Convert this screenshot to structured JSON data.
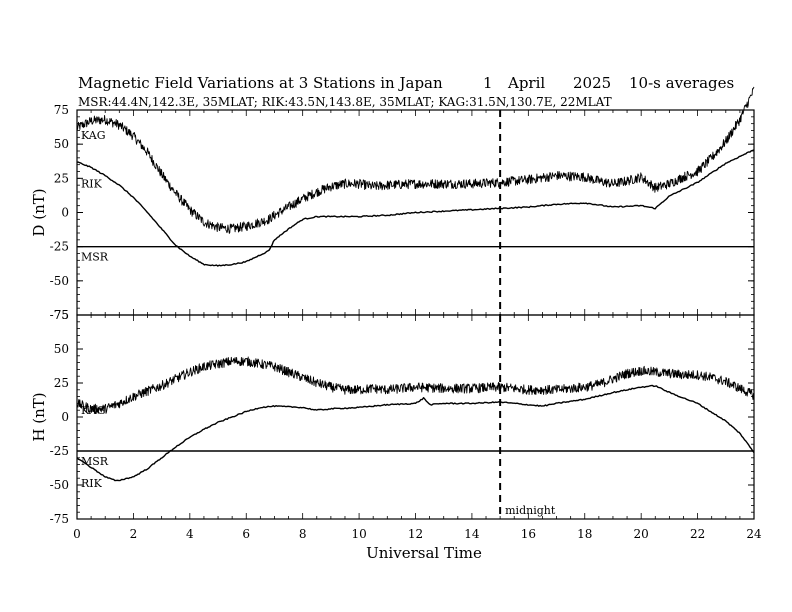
{
  "chart_data": {
    "type": "line",
    "title": "Magnetic Field Variations at 3 Stations in Japan",
    "date": {
      "day": "1",
      "month": "April",
      "year": "2025"
    },
    "averaging": "10-s averages",
    "subtitle": "MSR:44.4N,142.3E, 35MLAT;  RIK:43.5N,143.8E, 35MLAT;  KAG:31.5N,130.7E, 22MLAT",
    "xlabel": "Universal Time",
    "xlim": [
      0,
      24
    ],
    "xticks": [
      "0",
      "2",
      "4",
      "6",
      "8",
      "10",
      "12",
      "14",
      "16",
      "18",
      "20",
      "22",
      "24"
    ],
    "annotations": [
      {
        "text": "midnight",
        "x": 15
      }
    ],
    "marker_line": {
      "x": 15,
      "style": "dashed"
    },
    "panels": [
      {
        "ylabel": "D (nT)",
        "ylim": [
          -75,
          75
        ],
        "yticks": [
          "75",
          "50",
          "25",
          "0",
          "-25",
          "-50",
          "-75"
        ],
        "series": [
          {
            "name": "KAG",
            "noisy": true,
            "points": [
              [
                0,
                62
              ],
              [
                0.5,
                67
              ],
              [
                1,
                68
              ],
              [
                1.5,
                64
              ],
              [
                2,
                56
              ],
              [
                2.5,
                44
              ],
              [
                3,
                28
              ],
              [
                3.5,
                14
              ],
              [
                4,
                2
              ],
              [
                4.5,
                -7
              ],
              [
                5,
                -11
              ],
              [
                5.5,
                -12
              ],
              [
                6,
                -10
              ],
              [
                6.5,
                -7
              ],
              [
                6.8,
                -5
              ],
              [
                7,
                -2
              ],
              [
                7.5,
                4
              ],
              [
                8,
                10
              ],
              [
                8.5,
                15
              ],
              [
                9,
                19
              ],
              [
                9.5,
                21
              ],
              [
                10,
                21
              ],
              [
                10.5,
                19
              ],
              [
                11,
                20
              ],
              [
                12,
                21
              ],
              [
                13,
                21
              ],
              [
                14,
                21
              ],
              [
                15,
                22
              ],
              [
                16,
                24
              ],
              [
                17,
                27
              ],
              [
                18,
                26
              ],
              [
                18.5,
                23
              ],
              [
                19,
                21
              ],
              [
                19.5,
                23
              ],
              [
                20,
                26
              ],
              [
                20.5,
                18
              ],
              [
                21,
                21
              ],
              [
                21.5,
                26
              ],
              [
                22,
                30
              ],
              [
                22.5,
                40
              ],
              [
                23,
                52
              ],
              [
                23.5,
                68
              ],
              [
                24,
                90
              ]
            ]
          },
          {
            "name": "RIK",
            "noisy": false,
            "points": [
              [
                0,
                37
              ],
              [
                0.5,
                33
              ],
              [
                1,
                27
              ],
              [
                1.5,
                20
              ],
              [
                2,
                11
              ],
              [
                2.5,
                0
              ],
              [
                3,
                -12
              ],
              [
                3.5,
                -24
              ],
              [
                4,
                -32
              ],
              [
                4.5,
                -38
              ],
              [
                5,
                -39
              ],
              [
                5.5,
                -38
              ],
              [
                6,
                -36
              ],
              [
                6.5,
                -31
              ],
              [
                6.8,
                -28
              ],
              [
                7,
                -20
              ],
              [
                7.5,
                -12
              ],
              [
                8,
                -5
              ],
              [
                8.5,
                -3
              ],
              [
                9,
                -3
              ],
              [
                10,
                -3
              ],
              [
                11,
                -2
              ],
              [
                12,
                0
              ],
              [
                13,
                1
              ],
              [
                14,
                2
              ],
              [
                15,
                3
              ],
              [
                16,
                4
              ],
              [
                17,
                6
              ],
              [
                18,
                7
              ],
              [
                19,
                4
              ],
              [
                20,
                5
              ],
              [
                20.5,
                3
              ],
              [
                21,
                12
              ],
              [
                22,
                22
              ],
              [
                23,
                36
              ],
              [
                24,
                46
              ]
            ]
          },
          {
            "name": "MSR",
            "noisy": false,
            "points": [
              [
                0,
                -25
              ],
              [
                24,
                -25
              ]
            ]
          }
        ]
      },
      {
        "ylabel": "H (nT)",
        "ylim": [
          -75,
          75
        ],
        "yticks": [
          "75",
          "50",
          "25",
          "0",
          "-25",
          "-50",
          "-75"
        ],
        "series": [
          {
            "name": "KAG",
            "noisy": true,
            "points": [
              [
                0,
                10
              ],
              [
                0.5,
                6
              ],
              [
                1,
                6
              ],
              [
                1.5,
                10
              ],
              [
                2,
                15
              ],
              [
                2.5,
                19
              ],
              [
                3,
                23
              ],
              [
                3.5,
                28
              ],
              [
                4,
                33
              ],
              [
                4.5,
                37
              ],
              [
                5,
                39
              ],
              [
                5.5,
                41
              ],
              [
                6,
                41
              ],
              [
                6.5,
                39
              ],
              [
                7,
                37
              ],
              [
                7.5,
                33
              ],
              [
                8,
                29
              ],
              [
                8.5,
                25
              ],
              [
                9,
                22
              ],
              [
                9.5,
                20
              ],
              [
                10,
                20
              ],
              [
                10.5,
                21
              ],
              [
                11,
                20
              ],
              [
                12,
                22
              ],
              [
                13,
                21
              ],
              [
                14,
                21
              ],
              [
                15,
                22
              ],
              [
                16,
                20
              ],
              [
                17,
                20
              ],
              [
                18,
                22
              ],
              [
                18.5,
                24
              ],
              [
                19,
                28
              ],
              [
                19.5,
                32
              ],
              [
                20,
                34
              ],
              [
                20.5,
                33
              ],
              [
                21,
                32
              ],
              [
                21.5,
                31
              ],
              [
                22,
                31
              ],
              [
                22.5,
                29
              ],
              [
                23,
                26
              ],
              [
                23.5,
                21
              ],
              [
                24,
                16
              ]
            ]
          },
          {
            "name": "RIK",
            "noisy": false,
            "points": [
              [
                0,
                -30
              ],
              [
                0.5,
                -37
              ],
              [
                1,
                -44
              ],
              [
                1.4,
                -47
              ],
              [
                2,
                -44
              ],
              [
                2.5,
                -38
              ],
              [
                3,
                -30
              ],
              [
                3.5,
                -22
              ],
              [
                4,
                -15
              ],
              [
                4.5,
                -9
              ],
              [
                5,
                -4
              ],
              [
                5.5,
                0
              ],
              [
                6,
                4
              ],
              [
                6.5,
                7
              ],
              [
                7,
                8
              ],
              [
                8,
                7
              ],
              [
                8.5,
                5
              ],
              [
                9,
                6
              ],
              [
                10,
                7
              ],
              [
                11,
                9
              ],
              [
                12,
                10
              ],
              [
                12.3,
                14
              ],
              [
                12.5,
                9
              ],
              [
                13,
                10
              ],
              [
                14,
                10
              ],
              [
                15,
                11
              ],
              [
                16,
                9
              ],
              [
                16.5,
                8
              ],
              [
                17,
                10
              ],
              [
                18,
                13
              ],
              [
                19,
                18
              ],
              [
                20,
                22
              ],
              [
                20.5,
                23
              ],
              [
                21,
                18
              ],
              [
                22,
                10
              ],
              [
                23,
                -3
              ],
              [
                23.5,
                -12
              ],
              [
                24,
                -26
              ]
            ]
          },
          {
            "name": "MSR",
            "noisy": false,
            "points": [
              [
                0,
                -25
              ],
              [
                24,
                -25
              ]
            ]
          }
        ]
      }
    ]
  }
}
